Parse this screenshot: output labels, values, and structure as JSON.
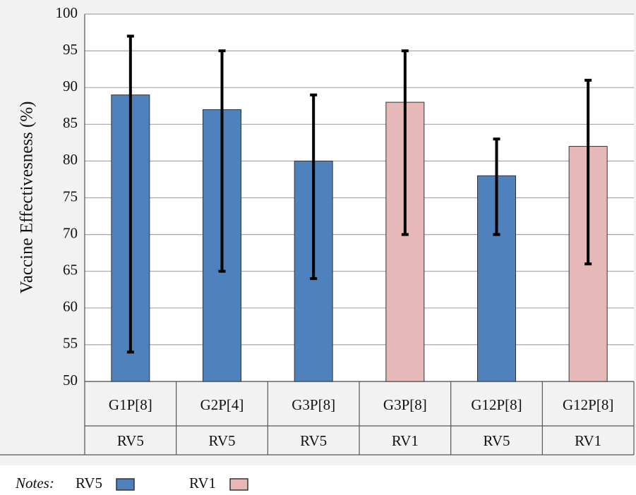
{
  "chart_data": {
    "type": "bar",
    "y_label": "Vaccine Effectivesness (%)",
    "categories": [
      "G1P[8]",
      "G2P[4]",
      "G3P[8]",
      "G3P[8]",
      "G12P[8]",
      "G12P[8]"
    ],
    "subcategories": [
      "RV5",
      "RV5",
      "RV5",
      "RV1",
      "RV5",
      "RV1"
    ],
    "legend_note": "Notes:",
    "series": [
      {
        "name": "RV5",
        "color": "#4f81bd",
        "values": [
          89,
          87,
          80,
          null,
          78,
          null
        ],
        "lower": [
          54,
          65,
          64,
          null,
          70,
          null
        ],
        "upper": [
          97,
          95,
          89,
          null,
          83,
          null
        ]
      },
      {
        "name": "RV1",
        "color": "#e6b9b8",
        "values": [
          null,
          null,
          null,
          88,
          null,
          82
        ],
        "lower": [
          null,
          null,
          null,
          70,
          null,
          66
        ],
        "upper": [
          null,
          null,
          null,
          95,
          null,
          91
        ]
      }
    ],
    "ylim": [
      50,
      100
    ],
    "yticks": [
      50,
      55,
      60,
      65,
      70,
      75,
      80,
      85,
      90,
      95,
      100
    ],
    "grid": true
  }
}
